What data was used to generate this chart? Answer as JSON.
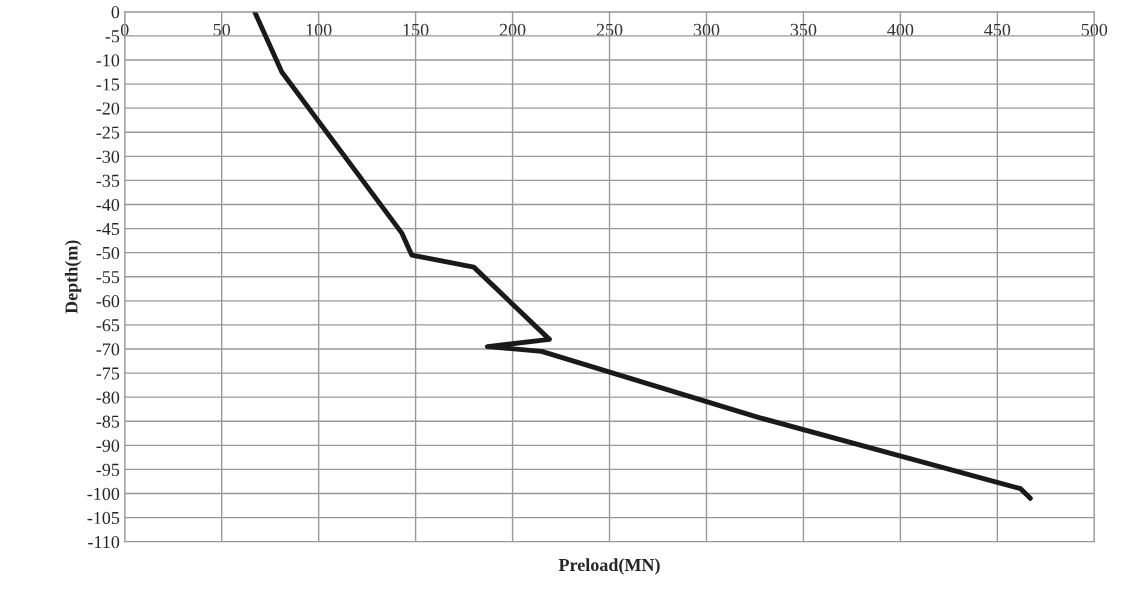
{
  "chart_data": {
    "type": "line",
    "xlabel": "Preload(MN)",
    "ylabel": "Depth(m)",
    "series": [
      {
        "color": "#1a1a1a",
        "x": [
          67,
          81,
          143,
          148,
          180,
          219,
          187,
          215,
          325,
          462,
          467
        ],
        "values": [
          0,
          -12.5,
          -46,
          -50.5,
          -53,
          -68,
          -69.5,
          -70.5,
          -84,
          -99,
          -101
        ]
      }
    ],
    "xlim": [
      0,
      500
    ],
    "xticks": [
      0,
      50,
      100,
      150,
      200,
      250,
      300,
      350,
      400,
      450,
      500
    ],
    "ylim": [
      -110,
      0
    ],
    "yticks": [
      0,
      -5,
      -10,
      -15,
      -20,
      -25,
      -30,
      -35,
      -40,
      -45,
      -50,
      -55,
      -60,
      -65,
      -70,
      -75,
      -80,
      -85,
      -90,
      -95,
      -100,
      -105,
      -110
    ],
    "grid": true,
    "marker": "none",
    "line_style": "solid"
  }
}
